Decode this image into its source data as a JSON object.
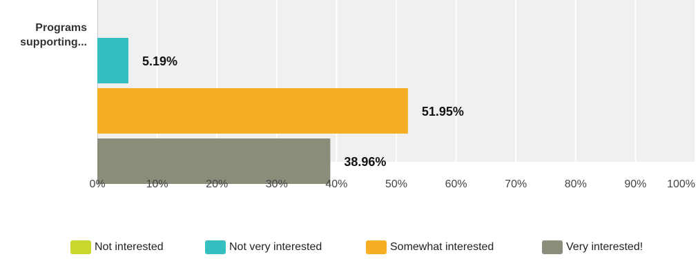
{
  "chart_data": {
    "type": "bar",
    "orientation": "horizontal",
    "categories": [
      "Programs\nsupporting..."
    ],
    "series": [
      {
        "name": "Not interested",
        "color": "#C9D62E",
        "values": [
          null
        ],
        "label": ""
      },
      {
        "name": "Not very interested",
        "color": "#35BFC1",
        "values": [
          5.19
        ],
        "label": "5.19%"
      },
      {
        "name": "Somewhat interested",
        "color": "#F6AF24",
        "values": [
          51.95
        ],
        "label": "51.95%"
      },
      {
        "name": "Very interested!",
        "color": "#8B8C7A",
        "values": [
          38.96
        ],
        "label": "38.96%"
      }
    ],
    "xlim": [
      0,
      100
    ],
    "x_ticks": [
      0,
      10,
      20,
      30,
      40,
      50,
      60,
      70,
      80,
      90,
      100
    ],
    "x_tick_labels": [
      "0%",
      "10%",
      "20%",
      "30%",
      "40%",
      "50%",
      "60%",
      "70%",
      "80%",
      "90%",
      "100%"
    ],
    "grid": true,
    "plot_background": "#F0F0F0",
    "legend_position": "bottom",
    "title": "",
    "xlabel": "",
    "ylabel": ""
  }
}
